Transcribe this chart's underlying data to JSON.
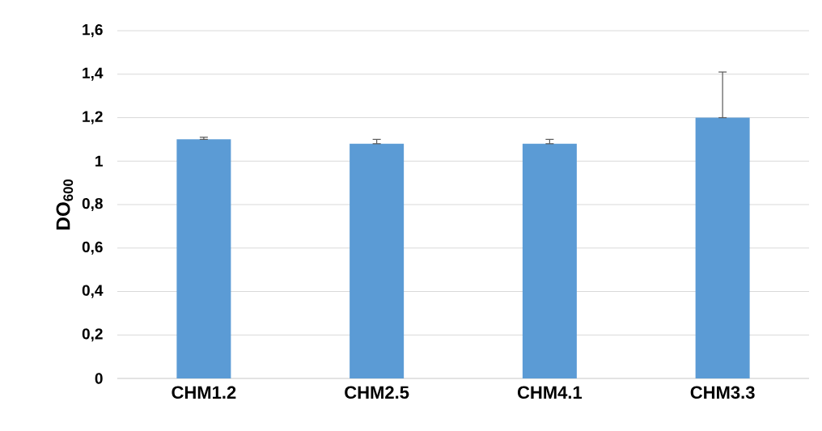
{
  "chart_data": {
    "type": "bar",
    "ylabel": "DO$_{600}$",
    "categories": [
      "CHM1.2",
      "CHM2.5",
      "CHM4.1",
      "CHM3.3"
    ],
    "values": [
      1.1,
      1.08,
      1.08,
      1.2
    ],
    "errors": [
      [
        1.1,
        1.11
      ],
      [
        1.08,
        1.1
      ],
      [
        1.08,
        1.1
      ],
      [
        1.2,
        1.41
      ]
    ],
    "color": "#5b9bd5",
    "ylim": [
      0,
      1.6
    ],
    "yticks": [
      0,
      {
        "value": 0.2,
        "label": "0,2"
      },
      {
        "value": 0.4,
        "label": "0,4"
      },
      {
        "value": 0.6,
        "label": "0,6"
      },
      {
        "value": 0.8,
        "label": "0,8"
      },
      1,
      {
        "value": 1.2,
        "label": "1,2"
      },
      {
        "value": 1.4,
        "label": "1,4"
      },
      {
        "value": 1.6,
        "label": "1,6"
      }
    ],
    "grid": "y"
  }
}
